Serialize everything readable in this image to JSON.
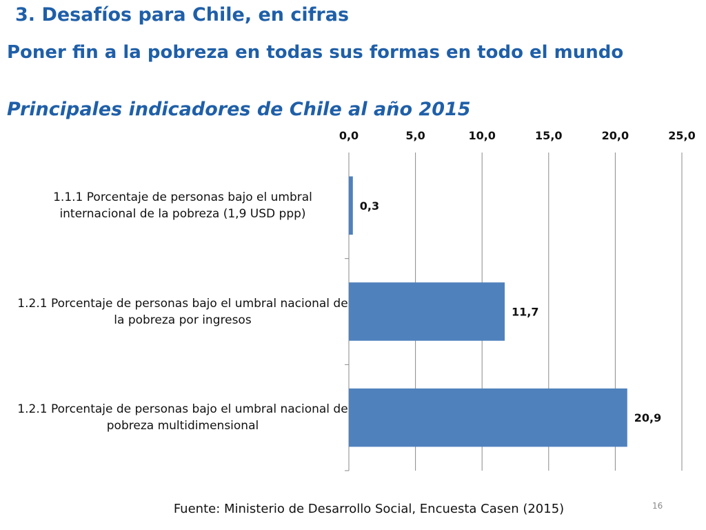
{
  "slide": {
    "title": "3. Desafíos para Chile, en cifras",
    "goal_heading": "Poner fin a la pobreza en todas sus formas en todo el mundo",
    "subtitle": "Principales indicadores de Chile al año 2015",
    "source": "Fuente: Ministerio de Desarrollo Social, Encuesta Casen (2015)",
    "page_number": "16"
  },
  "chart_data": {
    "type": "bar",
    "orientation": "horizontal",
    "categories": [
      "1.1.1 Porcentaje de personas bajo el umbral internacional de la pobreza (1,9 USD ppp)",
      "1.2.1 Porcentaje de personas bajo el umbral nacional de la pobreza por ingresos",
      "1.2.1 Porcentaje de personas bajo el umbral nacional de pobreza multidimensional"
    ],
    "values": [
      0.3,
      11.7,
      20.9
    ],
    "data_labels": [
      "0,3",
      "11,7",
      "20,9"
    ],
    "xlim": [
      0,
      25
    ],
    "ticks": [
      0,
      5,
      10,
      15,
      20,
      25
    ],
    "tick_labels": [
      "0,0",
      "5,0",
      "10,0",
      "15,0",
      "20,0",
      "25,0"
    ],
    "axis_position": "top",
    "grid": true,
    "legend": false,
    "bar_color": "#4f81bd"
  }
}
